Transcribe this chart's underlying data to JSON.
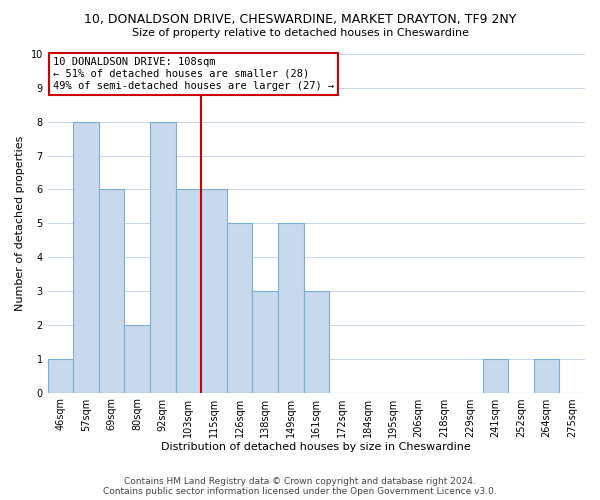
{
  "title": "10, DONALDSON DRIVE, CHESWARDINE, MARKET DRAYTON, TF9 2NY",
  "subtitle": "Size of property relative to detached houses in Cheswardine",
  "xlabel": "Distribution of detached houses by size in Cheswardine",
  "ylabel": "Number of detached properties",
  "bin_labels": [
    "46sqm",
    "57sqm",
    "69sqm",
    "80sqm",
    "92sqm",
    "103sqm",
    "115sqm",
    "126sqm",
    "138sqm",
    "149sqm",
    "161sqm",
    "172sqm",
    "184sqm",
    "195sqm",
    "206sqm",
    "218sqm",
    "229sqm",
    "241sqm",
    "252sqm",
    "264sqm",
    "275sqm"
  ],
  "bar_heights": [
    1,
    8,
    6,
    2,
    8,
    6,
    6,
    5,
    3,
    5,
    3,
    0,
    0,
    0,
    0,
    0,
    0,
    1,
    0,
    1,
    0
  ],
  "bar_color": "#c8d8ed",
  "bar_edge_color": "#7aafd4",
  "highlight_line_color": "#cc0000",
  "highlight_bar_index": 6,
  "annotation_title": "10 DONALDSON DRIVE: 108sqm",
  "annotation_line1": "← 51% of detached houses are smaller (28)",
  "annotation_line2": "49% of semi-detached houses are larger (27) →",
  "annotation_box_color": "#ffffff",
  "annotation_box_edge": "#cc0000",
  "ylim": [
    0,
    10
  ],
  "yticks": [
    0,
    1,
    2,
    3,
    4,
    5,
    6,
    7,
    8,
    9,
    10
  ],
  "footer_line1": "Contains HM Land Registry data © Crown copyright and database right 2024.",
  "footer_line2": "Contains public sector information licensed under the Open Government Licence v3.0.",
  "background_color": "#ffffff",
  "grid_color": "#c8d4e8",
  "title_fontsize": 9,
  "subtitle_fontsize": 8,
  "ylabel_fontsize": 8,
  "xlabel_fontsize": 8,
  "tick_fontsize": 7,
  "footer_fontsize": 6.5
}
